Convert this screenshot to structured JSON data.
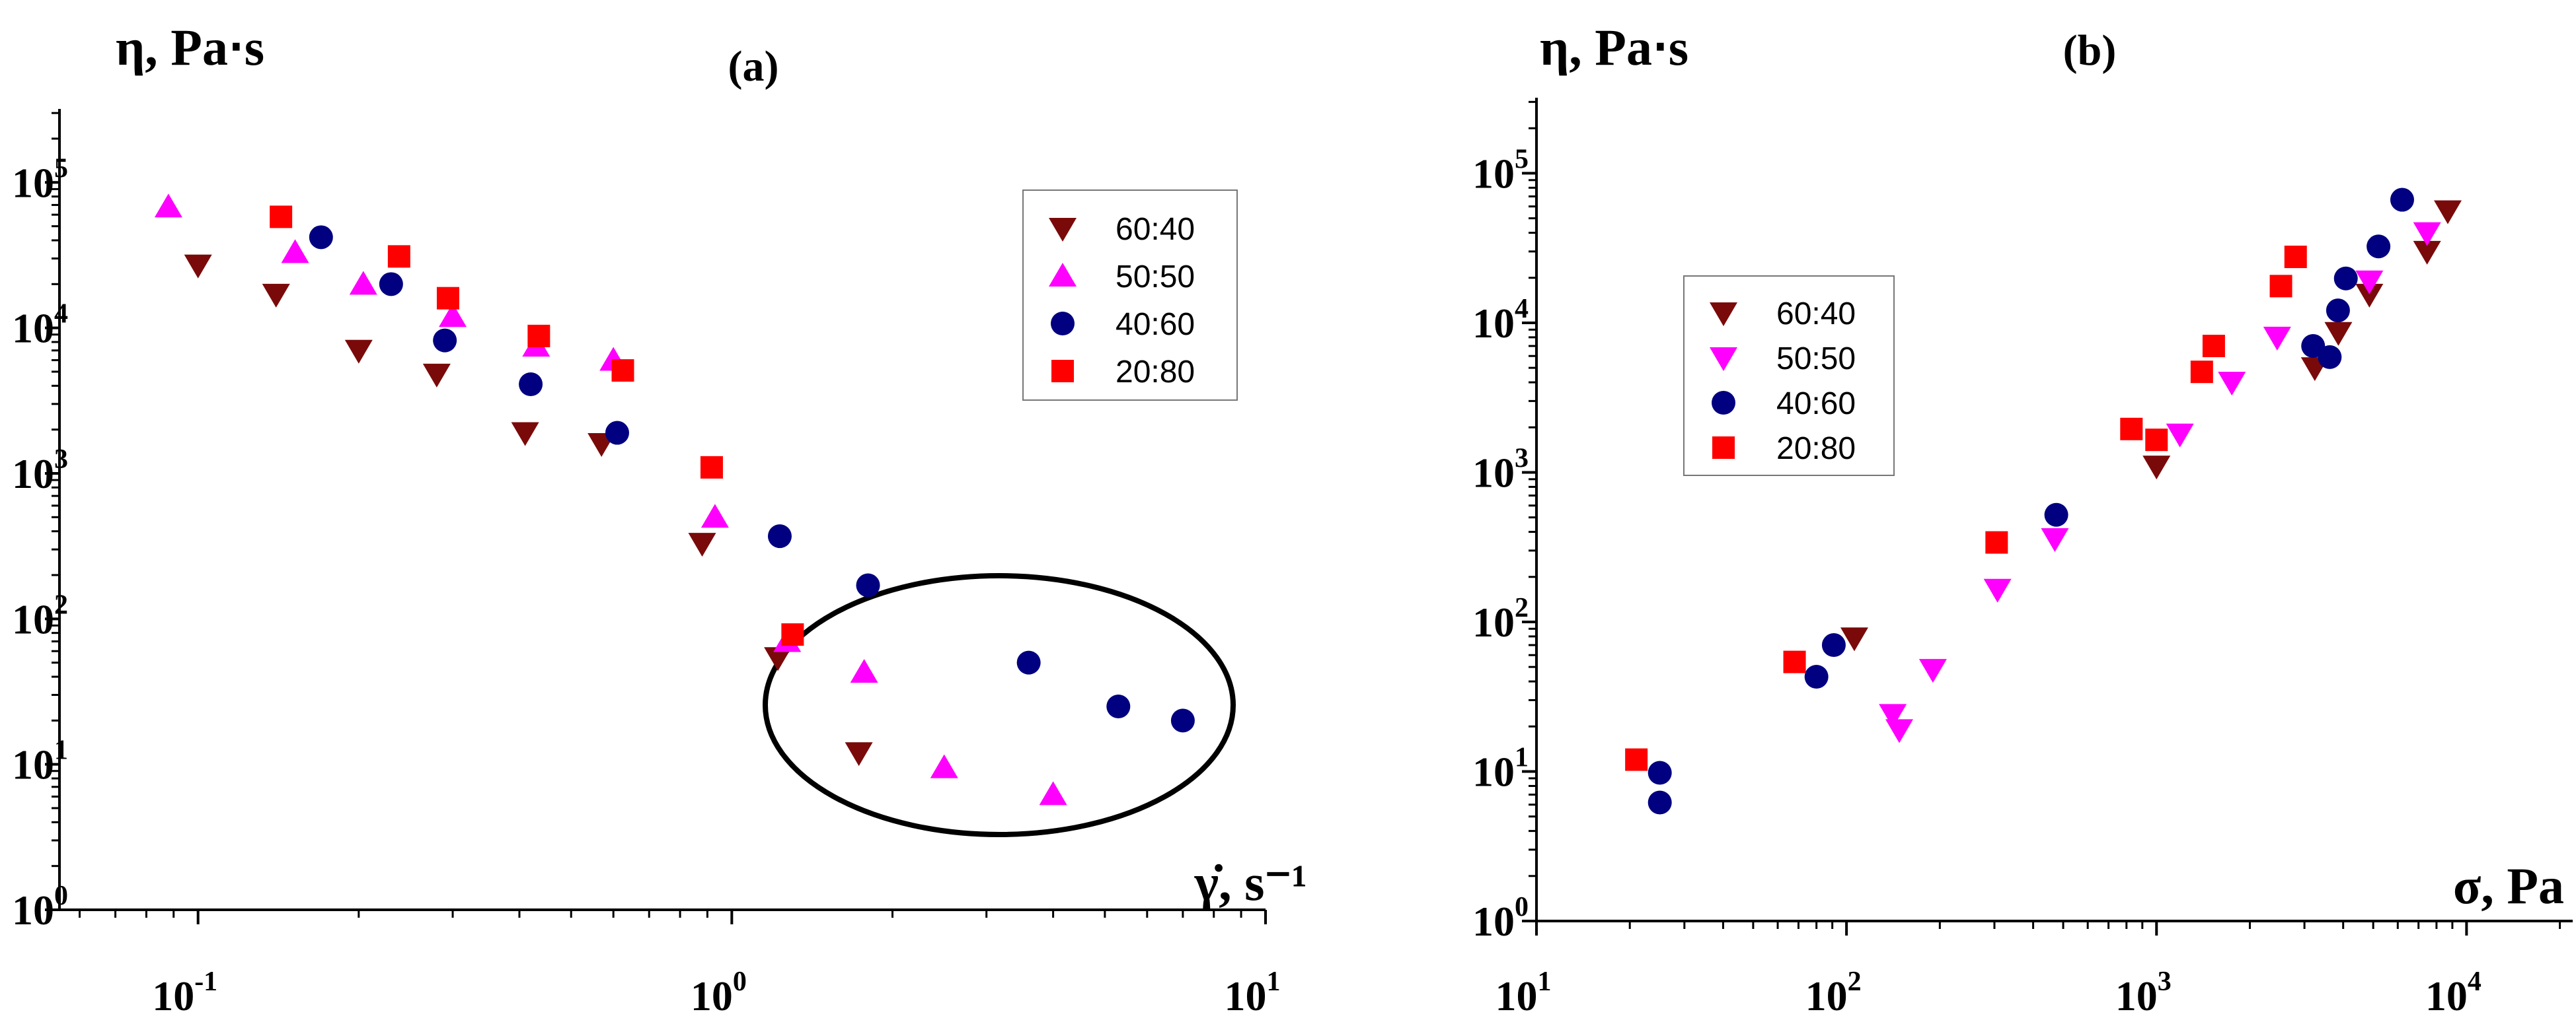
{
  "chart_data": [
    {
      "type": "scatter",
      "panel_label": "(a)",
      "ylabel": "η, Pa⋅s",
      "xlabel": "γ̇, s⁻¹",
      "xscale": "log",
      "yscale": "log",
      "xlim": [
        0.055,
        10
      ],
      "ylim": [
        1,
        320000
      ],
      "xticks": [
        {
          "base": "10",
          "exp": "-1",
          "value": 0.1
        },
        {
          "base": "10",
          "exp": "0",
          "value": 1
        },
        {
          "base": "10",
          "exp": "1",
          "value": 10
        }
      ],
      "yticks": [
        {
          "base": "10",
          "exp": "0",
          "value": 1
        },
        {
          "base": "10",
          "exp": "1",
          "value": 10
        },
        {
          "base": "10",
          "exp": "2",
          "value": 100
        },
        {
          "base": "10",
          "exp": "3",
          "value": 1000
        },
        {
          "base": "10",
          "exp": "4",
          "value": 10000
        },
        {
          "base": "10",
          "exp": "5",
          "value": 100000
        }
      ],
      "legend_position": "top-right",
      "annotation": "ellipse enclosing high shear-rate points (γ̇ ≈ 1.2–7 s⁻¹)",
      "series": [
        {
          "name": "60:40",
          "marker": "triangle-down",
          "color": "#7a0a0a",
          "x": [
            0.1,
            0.14,
            0.2,
            0.28,
            0.41,
            0.57,
            0.88,
            1.22,
            1.73
          ],
          "y": [
            27000,
            17000,
            7000,
            4800,
            1900,
            1600,
            330,
            54,
            12
          ]
        },
        {
          "name": "50:50",
          "marker": "triangle-up",
          "color": "#ff00ff",
          "x": [
            0.088,
            0.152,
            0.204,
            0.3,
            0.43,
            0.6,
            0.93,
            1.27,
            1.77,
            2.5,
            4.0
          ],
          "y": [
            68000,
            33000,
            20000,
            12000,
            7500,
            6000,
            500,
            70,
            43,
            9.5,
            6.2
          ]
        },
        {
          "name": "40:60",
          "marker": "circle",
          "color": "#000080",
          "x": [
            0.17,
            0.23,
            0.29,
            0.42,
            0.61,
            1.23,
            1.8,
            3.6,
            5.3,
            7.0
          ],
          "y": [
            42000,
            20000,
            8200,
            4100,
            1900,
            370,
            170,
            50,
            25,
            20
          ]
        },
        {
          "name": "20:80",
          "marker": "square",
          "color": "#ff0000",
          "x": [
            0.143,
            0.238,
            0.294,
            0.435,
            0.625,
            0.917,
            1.3
          ],
          "y": [
            58000,
            31000,
            16000,
            8800,
            5100,
            1100,
            78
          ]
        }
      ]
    },
    {
      "type": "scatter",
      "panel_label": "(b)",
      "ylabel": "η, Pa⋅s",
      "xlabel": "σ, Pa",
      "xscale": "log",
      "yscale": "log",
      "xlim": [
        10,
        22000
      ],
      "ylim": [
        1,
        320000
      ],
      "xticks": [
        {
          "base": "10",
          "exp": "1",
          "value": 10
        },
        {
          "base": "10",
          "exp": "2",
          "value": 100
        },
        {
          "base": "10",
          "exp": "3",
          "value": 1000
        },
        {
          "base": "10",
          "exp": "4",
          "value": 10000
        }
      ],
      "yticks": [
        {
          "base": "10",
          "exp": "0",
          "value": 1
        },
        {
          "base": "10",
          "exp": "1",
          "value": 10
        },
        {
          "base": "10",
          "exp": "2",
          "value": 100
        },
        {
          "base": "10",
          "exp": "3",
          "value": 1000
        },
        {
          "base": "10",
          "exp": "4",
          "value": 10000
        },
        {
          "base": "10",
          "exp": "5",
          "value": 100000
        }
      ],
      "legend_position": "upper-left",
      "series": [
        {
          "name": "60:40",
          "marker": "triangle-down",
          "color": "#7a0a0a",
          "x": [
            106,
            1000,
            3240,
            3860,
            4860,
            7460,
            8700
          ],
          "y": [
            78,
            1100,
            5000,
            8600,
            15500,
            30000,
            56000
          ]
        },
        {
          "name": "50:50",
          "marker": "triangle-down",
          "color": "#ff00ff",
          "x": [
            141,
            148,
            190,
            307,
            470,
            1190,
            1750,
            2450,
            4860,
            7460
          ],
          "y": [
            24,
            19,
            48,
            165,
            360,
            1800,
            4000,
            8000,
            19000,
            40000
          ]
        },
        {
          "name": "40:60",
          "marker": "circle",
          "color": "#000080",
          "x": [
            25,
            25,
            80,
            91,
            475,
            3200,
            3620,
            3850,
            4080,
            5200,
            6200
          ],
          "y": [
            9.8,
            6.2,
            43,
            70,
            520,
            7000,
            5900,
            12100,
            19800,
            32400,
            66500
          ]
        },
        {
          "name": "20:80",
          "marker": "square",
          "color": "#ff0000",
          "x": [
            21,
            68,
            305,
            830,
            1000,
            1400,
            1530,
            2520,
            2810
          ],
          "y": [
            12,
            54,
            340,
            1950,
            1650,
            4700,
            7000,
            17600,
            27600
          ]
        }
      ]
    }
  ]
}
